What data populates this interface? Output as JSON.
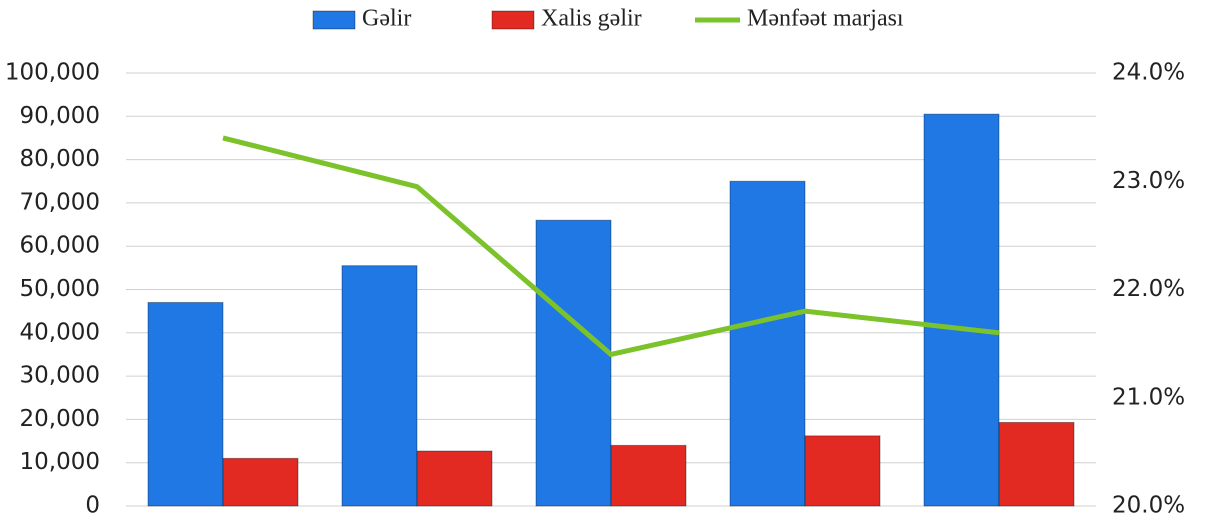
{
  "chart_data": {
    "type": "bar",
    "categories": [
      null,
      null,
      null,
      null,
      null
    ],
    "series": [
      {
        "name": "Gəlir",
        "color": "#1f78e3",
        "values": [
          47000,
          55500,
          66000,
          75000,
          90500
        ]
      },
      {
        "name": "Xalis gəlir",
        "color": "#e32a22",
        "values": [
          11000,
          12700,
          14000,
          16200,
          19300
        ]
      },
      {
        "name": "Mənfəət marjası",
        "color": "#7cc22a",
        "type": "line",
        "axis": "y2",
        "values": [
          23.4,
          22.95,
          21.4,
          21.8,
          21.6
        ]
      }
    ],
    "ylim": [
      0,
      100000
    ],
    "yticks": [
      0,
      {
        "value": 10000,
        "label": "10,000"
      },
      {
        "value": 20000,
        "label": "20,000"
      },
      {
        "value": 30000,
        "label": "30,000"
      },
      {
        "value": 40000,
        "label": "40,000"
      },
      {
        "value": 50000,
        "label": "50,000"
      },
      {
        "value": 60000,
        "label": "60,000"
      },
      {
        "value": 70000,
        "label": "70,000"
      },
      {
        "value": 80000,
        "label": "80,000"
      },
      {
        "value": 90000,
        "label": "90,000"
      },
      {
        "value": 100000,
        "label": "100,000"
      }
    ],
    "y2lim": [
      20,
      24
    ],
    "y2ticks": [
      {
        "value": 20,
        "label": "20.0%"
      },
      {
        "value": 21,
        "label": "21.0%"
      },
      {
        "value": 22,
        "label": "22.0%"
      },
      {
        "value": 23,
        "label": "23.0%"
      },
      {
        "value": 24,
        "label": "24.0%"
      }
    ],
    "grid": true,
    "legend": "top"
  }
}
